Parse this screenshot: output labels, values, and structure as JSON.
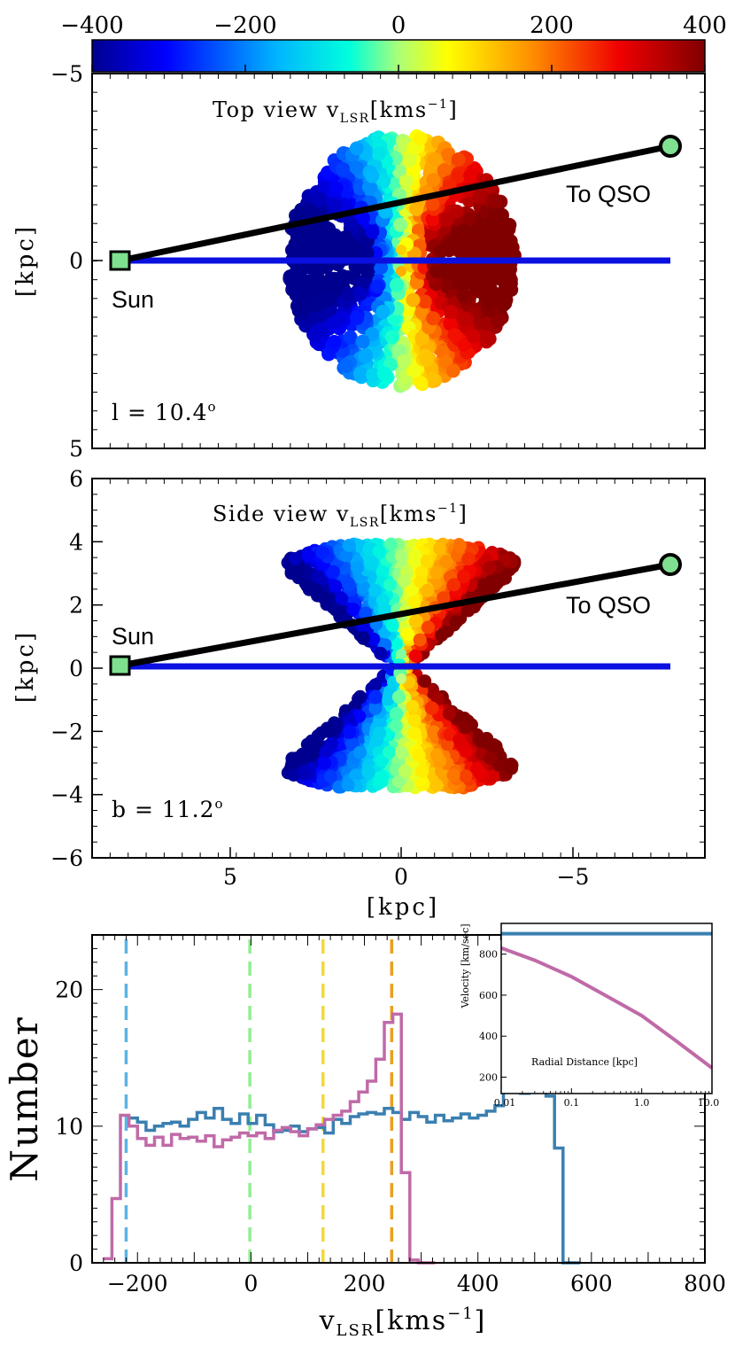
{
  "chart_data": [
    {
      "type": "colorbar",
      "ticks": [
        "−400",
        "−200",
        "0",
        "200",
        "400"
      ],
      "range": [
        -400,
        400
      ],
      "colors": [
        "#00008f",
        "#0040ff",
        "#00c8ff",
        "#80ff80",
        "#ffff00",
        "#ffa000",
        "#ff2000",
        "#b00000",
        "#600000"
      ]
    },
    {
      "type": "scatter",
      "title_main": "Top view v",
      "title_sub": "LSR",
      "title_unit": "[kms",
      "title_exp": "−1",
      "title_end": "]",
      "xlim": [
        8.5,
        -8.5
      ],
      "ylim": [
        5,
        -5
      ],
      "ylabel": "[kpc]",
      "y_ticks": [
        "−5",
        "0",
        "5"
      ],
      "sun_label": "Sun",
      "qso_label": "To QSO",
      "sun": [
        8.5,
        0
      ],
      "qso": [
        -8.5,
        -3.3
      ],
      "blue_line": [
        [
          8.5,
          0
        ],
        [
          -8.5,
          0
        ]
      ],
      "disk_radius": 3.5,
      "annotation": "l = 10.4°",
      "annotation_main": "l = 10.4",
      "annotation_sup": "o"
    },
    {
      "type": "scatter",
      "title_main": "Side view v",
      "title_sub": "LSR",
      "title_unit": "[kms",
      "title_exp": "−1",
      "title_end": "]",
      "xlim": [
        8.5,
        -8.5
      ],
      "ylim": [
        -6,
        6
      ],
      "xlabel": "[kpc]",
      "ylabel": "[kpc]",
      "x_ticks": [
        "5",
        "0",
        "−5"
      ],
      "y_ticks": [
        "−6",
        "−4",
        "−2",
        "0",
        "2",
        "4",
        "6"
      ],
      "sun_label": "Sun",
      "qso_label": "To QSO",
      "sun": [
        8.5,
        0
      ],
      "qso": [
        -8.5,
        3.3
      ],
      "blue_line": [
        [
          8.5,
          0
        ],
        [
          -8.5,
          0
        ]
      ],
      "annotation": "b = 11.2°",
      "annotation_main": "b = 11.2",
      "annotation_sup": "o"
    },
    {
      "type": "line",
      "xlabel_main": "v",
      "xlabel_sub": "LSR",
      "xlabel_unit": "[kms",
      "xlabel_exp": "−1",
      "xlabel_end": "]",
      "ylabel": "Number",
      "xlim": [
        -280,
        800
      ],
      "ylim": [
        0,
        24
      ],
      "x_ticks": [
        "−200",
        "0",
        "200",
        "400",
        "600",
        "800"
      ],
      "y_ticks": [
        "0",
        "10",
        "20"
      ],
      "vlines": [
        {
          "x": -220,
          "color": "#5ab4e6"
        },
        {
          "x": -2,
          "color": "#90ee90"
        },
        {
          "x": 127,
          "color": "#f0d840"
        },
        {
          "x": 248,
          "color": "#e8a020"
        }
      ],
      "series": [
        {
          "color": "#3a7fb0",
          "step": 15,
          "x0": -215,
          "values": [
            10.6,
            10.3,
            9.7,
            10.0,
            10.2,
            10.3,
            10.0,
            10.5,
            11.0,
            10.6,
            11.3,
            10.5,
            10.2,
            10.9,
            10.2,
            10.8,
            10.1,
            9.6,
            9.7,
            10.0,
            9.6,
            9.8,
            9.9,
            9.5,
            10.5,
            10.2,
            10.7,
            10.9,
            11.0,
            10.9,
            11.3,
            11.0,
            10.5,
            11.0,
            10.7,
            10.3,
            10.8,
            10.4,
            10.6,
            10.9,
            10.6,
            10.8,
            11.1,
            11.5,
            12.5,
            13.0,
            12.4,
            13.2,
            12.9,
            12.2,
            8.4,
            0,
            0
          ]
        },
        {
          "color": "#c06aa8",
          "step": 15,
          "x0": -260,
          "values": [
            0.3,
            4.7,
            10.8,
            10.0,
            9.1,
            8.6,
            9.2,
            8.6,
            9.4,
            9.1,
            9.2,
            8.9,
            9.3,
            8.5,
            9.0,
            9.2,
            9.5,
            9.3,
            9.5,
            9.1,
            9.7,
            9.9,
            9.6,
            9.3,
            9.8,
            10.1,
            10.5,
            10.8,
            11.1,
            11.8,
            12.5,
            13.3,
            14.9,
            17.6,
            18.2,
            6.6,
            0.2,
            0,
            0
          ]
        }
      ]
    },
    {
      "type": "line",
      "inset": true,
      "xlabel": "Radial Distance [kpc]",
      "ylabel": "Velocity [km/sec]",
      "xscale": "log",
      "xlim": [
        0.01,
        10.0
      ],
      "ylim": [
        120,
        950
      ],
      "x_ticks": [
        "0.01",
        "0.1",
        "1.0",
        "10.0"
      ],
      "y_ticks": [
        "200",
        "400",
        "600",
        "800"
      ],
      "series": [
        {
          "color": "#3a7fb0",
          "x": [
            0.01,
            10.0
          ],
          "y": [
            900,
            900
          ]
        },
        {
          "color": "#c06aa8",
          "x": [
            0.01,
            0.03,
            0.1,
            0.3,
            1.0,
            3.0,
            10.0
          ],
          "y": [
            830,
            770,
            690,
            600,
            500,
            380,
            245
          ]
        }
      ]
    }
  ]
}
